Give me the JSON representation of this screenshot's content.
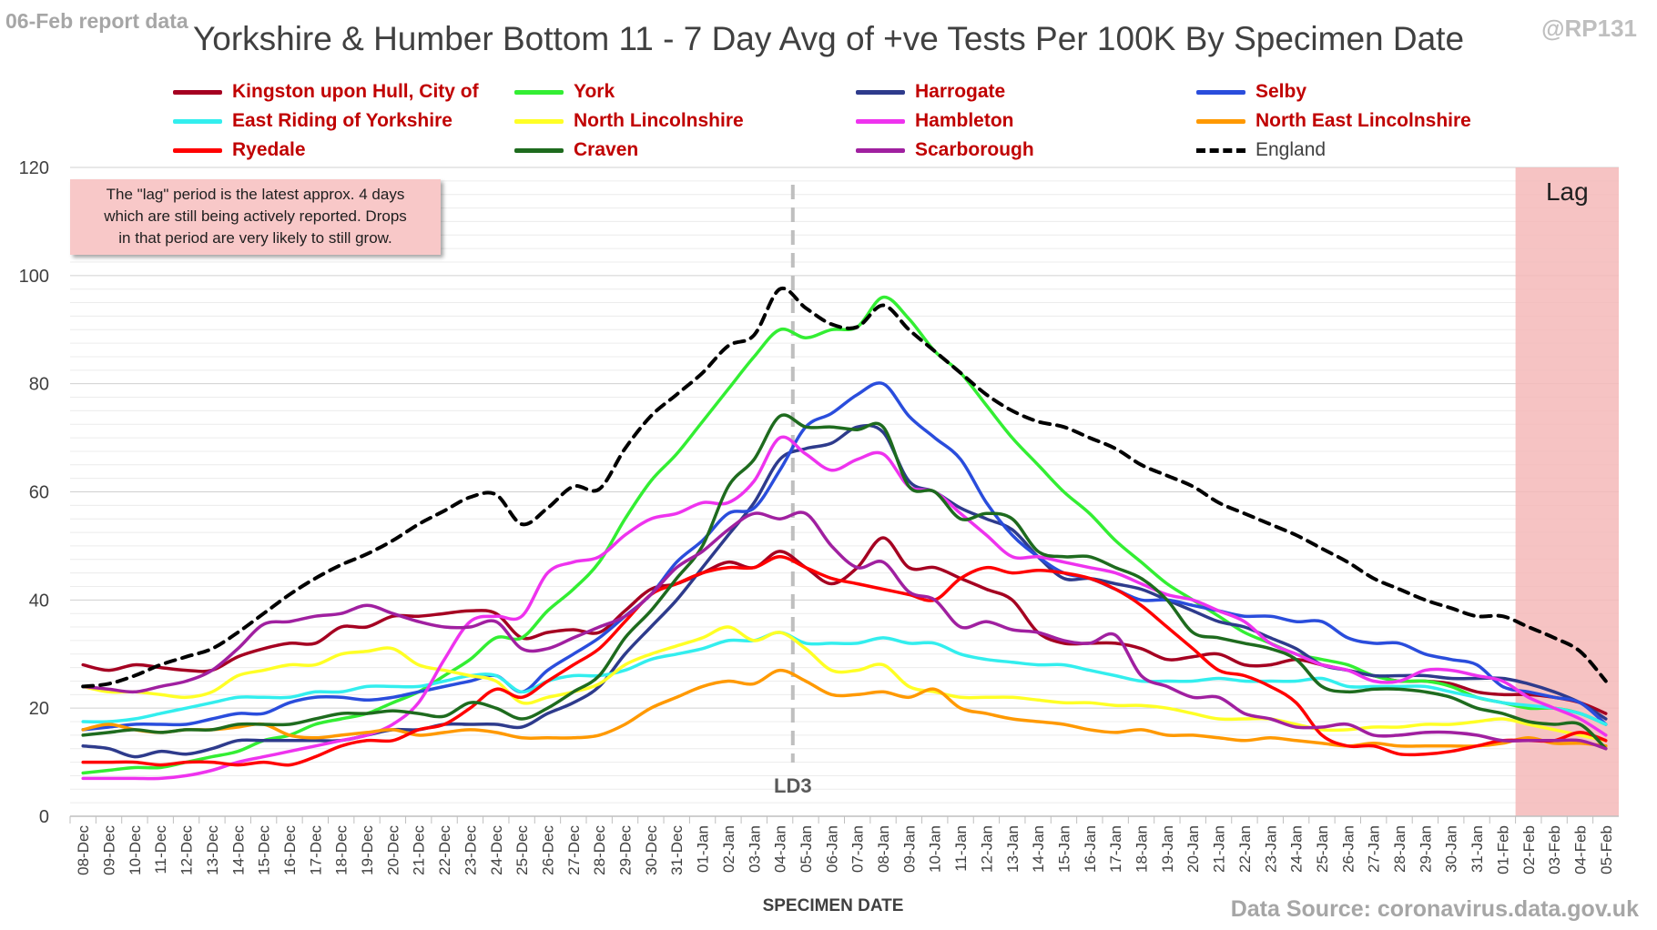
{
  "corner_label": "06-Feb report data",
  "handle": "@RP131",
  "note": [
    "The \"lag\" period is the latest approx. 4 days",
    "which are still being actively reported. Drops",
    "in that period are very likely to still grow."
  ],
  "source": "Data Source: coronavirus.data.gov.uk",
  "chart_data": {
    "type": "line",
    "title": "Yorkshire & Humber Bottom 11 - 7 Day Avg of +ve Tests Per 100K By Specimen Date",
    "xlabel": "SPECIMEN DATE",
    "ylabel": "",
    "ylim": [
      0,
      120
    ],
    "yticks": [
      0,
      20,
      40,
      60,
      80,
      100,
      120
    ],
    "grid": "horizontal",
    "legend_position": "top",
    "categories": [
      "08-Dec",
      "09-Dec",
      "10-Dec",
      "11-Dec",
      "12-Dec",
      "13-Dec",
      "14-Dec",
      "15-Dec",
      "16-Dec",
      "17-Dec",
      "18-Dec",
      "19-Dec",
      "20-Dec",
      "21-Dec",
      "22-Dec",
      "23-Dec",
      "24-Dec",
      "25-Dec",
      "26-Dec",
      "27-Dec",
      "28-Dec",
      "29-Dec",
      "30-Dec",
      "31-Dec",
      "01-Jan",
      "02-Jan",
      "03-Jan",
      "04-Jan",
      "05-Jan",
      "06-Jan",
      "07-Jan",
      "08-Jan",
      "09-Jan",
      "10-Jan",
      "11-Jan",
      "12-Jan",
      "13-Jan",
      "14-Jan",
      "15-Jan",
      "16-Jan",
      "17-Jan",
      "18-Jan",
      "19-Jan",
      "20-Jan",
      "21-Jan",
      "22-Jan",
      "23-Jan",
      "24-Jan",
      "25-Jan",
      "26-Jan",
      "27-Jan",
      "28-Jan",
      "29-Jan",
      "30-Jan",
      "31-Jan",
      "01-Feb",
      "02-Feb",
      "03-Feb",
      "04-Feb",
      "05-Feb"
    ],
    "annotations": [
      {
        "type": "vertical-line",
        "at": "05-Jan",
        "label": "LD3",
        "style": "dashed",
        "color": "#bfbfbf"
      },
      {
        "type": "shaded-region",
        "from": "02-Feb",
        "to": "05-Feb",
        "label": "Lag",
        "color": "#f4b8b8"
      }
    ],
    "series": [
      {
        "name": "Kingston upon Hull, City of",
        "color": "#a50021",
        "style": "solid",
        "values": [
          28,
          27,
          28,
          27.5,
          27,
          27,
          29.5,
          31,
          32,
          32,
          35,
          35,
          37,
          37,
          37.5,
          38,
          37.5,
          33,
          34,
          34.5,
          34,
          38,
          42,
          43,
          45,
          47,
          46,
          49,
          46,
          43,
          46,
          51.5,
          46,
          46,
          44,
          42,
          40,
          34,
          32,
          32,
          32,
          31,
          29,
          29.5,
          30,
          28,
          28,
          29,
          28,
          27,
          26,
          25,
          25,
          24.5,
          23,
          22.5,
          22.5,
          22,
          21,
          19
        ]
      },
      {
        "name": "York",
        "color": "#33ee33",
        "style": "solid",
        "values": [
          8,
          8.5,
          9,
          9,
          10,
          11,
          12,
          14,
          15,
          17,
          18,
          19,
          21,
          23,
          26,
          29,
          33,
          33,
          38,
          42,
          47,
          55,
          62,
          67,
          73,
          79,
          85,
          90,
          88.5,
          90,
          90.5,
          96,
          92,
          86,
          82,
          76,
          70,
          65,
          60,
          56,
          51,
          47,
          43,
          40,
          37,
          34,
          32,
          30,
          29,
          28,
          26,
          25,
          25,
          24,
          22,
          21,
          20,
          20,
          19,
          17
        ]
      },
      {
        "name": "Harrogate",
        "color": "#2e3b8c",
        "style": "solid",
        "values": [
          13,
          12.5,
          11,
          12,
          11.5,
          12.5,
          14,
          14,
          14,
          14,
          14,
          15,
          16,
          16,
          17,
          17,
          17,
          16.5,
          19,
          21,
          24,
          30,
          35,
          40,
          46,
          52,
          58,
          66,
          68,
          69,
          72,
          71,
          62,
          60,
          57,
          55,
          53,
          48,
          44,
          44,
          43,
          42,
          40,
          38,
          36,
          35,
          33,
          31,
          28,
          27,
          26,
          26,
          26,
          25.5,
          25.5,
          25.5,
          24.5,
          23,
          21,
          18
        ]
      },
      {
        "name": "Selby",
        "color": "#2a4ddc",
        "style": "solid",
        "values": [
          16,
          16.5,
          17,
          17,
          17,
          18,
          19,
          19,
          21,
          22,
          22,
          21.5,
          22,
          23,
          24,
          25,
          26,
          23,
          27,
          30,
          33,
          37,
          41,
          47,
          51,
          56,
          57,
          64,
          72,
          74.5,
          78,
          80,
          74,
          70,
          66,
          58,
          52,
          48,
          45,
          44,
          42,
          40,
          40,
          39,
          38,
          37,
          37,
          36,
          36,
          33,
          32,
          32,
          30,
          29,
          28,
          24,
          23,
          22,
          21,
          17
        ]
      },
      {
        "name": "East Riding of Yorkshire",
        "color": "#33eeee",
        "style": "solid",
        "values": [
          17.5,
          17.5,
          18,
          19,
          20,
          21,
          22,
          22,
          22,
          23,
          23,
          24,
          24,
          24,
          25,
          26,
          26,
          23,
          25,
          26,
          26,
          27,
          29,
          30,
          31,
          32.5,
          32.5,
          34,
          32,
          32,
          32,
          33,
          32,
          32,
          30,
          29,
          28.5,
          28,
          28,
          27,
          26,
          25,
          25,
          25,
          25.5,
          25,
          25,
          25,
          25.5,
          24,
          24,
          24,
          24,
          23,
          22,
          21,
          20.5,
          20,
          19,
          17
        ]
      },
      {
        "name": "North Lincolnshire",
        "color": "#ffff26",
        "style": "solid",
        "values": [
          24,
          23,
          23,
          22.5,
          22,
          23,
          26,
          27,
          28,
          28,
          30,
          30.5,
          31,
          28,
          27,
          26,
          25,
          21,
          22,
          23,
          24.5,
          28,
          30,
          31.5,
          33,
          35,
          32.5,
          34,
          31,
          27,
          27,
          28,
          24,
          23,
          22,
          22,
          22,
          21.5,
          21,
          21,
          20.5,
          20.5,
          20,
          19,
          18,
          18,
          18,
          17,
          16,
          16,
          16.5,
          16.5,
          17,
          17,
          17.5,
          18,
          17,
          16,
          15,
          14
        ]
      },
      {
        "name": "Hambleton",
        "color": "#ee33ee",
        "style": "solid",
        "values": [
          7,
          7,
          7,
          7,
          7.5,
          8.5,
          10,
          11,
          12,
          13,
          14,
          15,
          17,
          21,
          29,
          36,
          37,
          37,
          45,
          47,
          48,
          52,
          55,
          56,
          58,
          58,
          62,
          70,
          67,
          64,
          66,
          67,
          61,
          60,
          56,
          52,
          48,
          48,
          47,
          46,
          45,
          43,
          41,
          40,
          38,
          36,
          32,
          30,
          28,
          27,
          25,
          25,
          27,
          27,
          26,
          25,
          22,
          20,
          18,
          15
        ]
      },
      {
        "name": "North East Lincolnshire",
        "color": "#ff9900",
        "style": "solid",
        "values": [
          16,
          17,
          16,
          15.5,
          16,
          16,
          16.5,
          17,
          15,
          14.5,
          15,
          15.5,
          16,
          15,
          15.5,
          16,
          15.5,
          14.5,
          14.5,
          14.5,
          15,
          17,
          20,
          22,
          24,
          25,
          24.5,
          27,
          25,
          22.5,
          22.5,
          23,
          22,
          23.5,
          20,
          19,
          18,
          17.5,
          17,
          16,
          15.5,
          16,
          15,
          15,
          14.5,
          14,
          14.5,
          14,
          13.5,
          13,
          13.5,
          13,
          13,
          13,
          13,
          13.5,
          14.5,
          13.5,
          13.5,
          13
        ]
      },
      {
        "name": "Ryedale",
        "color": "#ff0000",
        "style": "solid",
        "values": [
          10,
          10,
          10,
          9.5,
          10,
          10,
          9.5,
          10,
          9.5,
          11,
          13,
          14,
          14,
          16,
          17,
          20,
          23.5,
          22,
          25,
          28,
          31,
          36,
          41,
          43,
          45,
          46,
          46,
          48,
          46,
          44,
          43,
          42,
          41,
          40,
          44,
          46,
          45,
          45.5,
          45,
          44,
          42,
          39,
          35,
          31,
          27,
          26,
          24,
          21,
          15,
          13,
          13,
          11.5,
          11.5,
          12,
          13,
          14,
          14,
          14,
          15.5,
          14
        ]
      },
      {
        "name": "Craven",
        "color": "#1e6b1e",
        "style": "solid",
        "values": [
          15,
          15.5,
          16,
          15.5,
          16,
          16,
          17,
          17,
          17,
          18,
          19,
          19,
          19.5,
          19,
          18.5,
          21,
          20,
          18,
          20,
          23,
          26,
          33,
          38,
          44,
          50,
          61,
          66,
          74,
          72,
          72,
          71.5,
          72,
          61,
          60,
          55,
          56,
          55,
          49,
          48,
          48,
          46,
          44,
          40,
          34,
          33,
          32,
          31,
          29,
          24,
          23,
          23.5,
          23.5,
          23,
          22,
          20,
          19,
          17.5,
          17,
          17,
          12.5
        ]
      },
      {
        "name": "Scarborough",
        "color": "#a020a0",
        "style": "solid",
        "values": [
          24,
          23.5,
          23,
          24,
          25,
          27,
          31,
          35.5,
          36,
          37,
          37.5,
          39,
          37.5,
          36,
          35,
          35,
          36,
          31,
          31,
          33,
          35,
          37,
          41,
          46,
          49,
          53,
          56,
          55,
          56,
          50,
          46,
          47,
          41.5,
          40,
          35,
          36,
          34.5,
          34,
          32.5,
          32,
          33.5,
          26,
          24,
          22,
          22,
          19,
          18,
          16.5,
          16.5,
          17,
          15,
          15,
          15.5,
          15.5,
          15,
          14,
          14,
          14,
          14,
          12.5
        ]
      },
      {
        "name": "England",
        "color": "#000000",
        "style": "dashed",
        "values": [
          24,
          24.5,
          26,
          28,
          29.5,
          31,
          34,
          37.5,
          41,
          44,
          46.5,
          48.5,
          51,
          54,
          56.5,
          59,
          59.5,
          54,
          57,
          61,
          60.5,
          68,
          74,
          78,
          82,
          87,
          89,
          97.5,
          94,
          91,
          90.5,
          94.5,
          90,
          86,
          82,
          78,
          75,
          73,
          72,
          70,
          68,
          65,
          63,
          61,
          58,
          56,
          54,
          52,
          49.5,
          47,
          44,
          42,
          40,
          38.5,
          37,
          37,
          35,
          33,
          30.5,
          25
        ]
      }
    ]
  }
}
